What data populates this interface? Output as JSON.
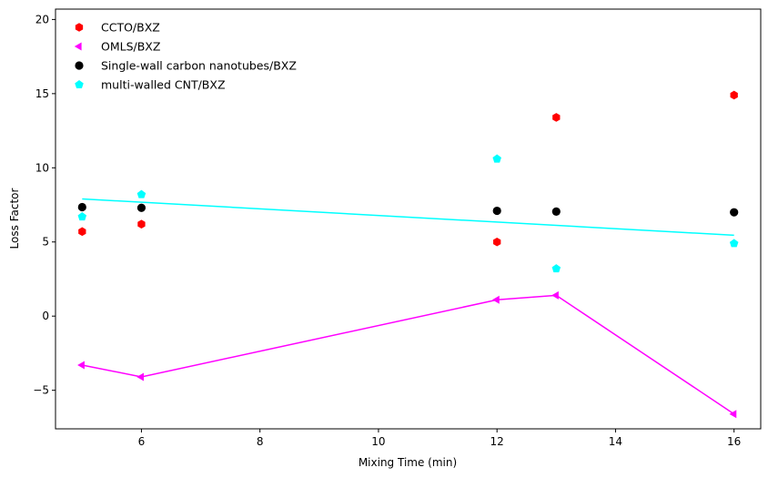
{
  "chart_data": {
    "type": "scatter",
    "xlabel": "Mixing Time (min)",
    "ylabel": "Loss Factor",
    "xlim": [
      4.55,
      16.45
    ],
    "ylim": [
      -7.6,
      20.7
    ],
    "xticks": [
      6,
      8,
      10,
      12,
      14,
      16
    ],
    "yticks": [
      -5,
      0,
      5,
      10,
      15,
      20
    ],
    "ytick_labels": [
      "−5",
      "0",
      "5",
      "10",
      "15",
      "20"
    ],
    "grid": false,
    "legend_position": "top-left",
    "series": [
      {
        "name": "CCTO/BXZ",
        "color": "#ff0000",
        "marker": "hexagon",
        "line": false,
        "points": [
          [
            5,
            5.7
          ],
          [
            6,
            6.2
          ],
          [
            12,
            5.0
          ],
          [
            13,
            13.4
          ],
          [
            16,
            14.9
          ]
        ]
      },
      {
        "name": "OMLS/BXZ",
        "color": "#ff00ff",
        "marker": "triangle-left",
        "line": true,
        "points": [
          [
            5,
            -3.3
          ],
          [
            6,
            -4.1
          ],
          [
            12,
            1.1
          ],
          [
            13,
            1.4
          ],
          [
            16,
            -6.6
          ]
        ]
      },
      {
        "name": "Single-wall carbon nanotubes/BXZ",
        "color": "#000000",
        "marker": "circle",
        "line": false,
        "points": [
          [
            5,
            7.35
          ],
          [
            6,
            7.3
          ],
          [
            12,
            7.1
          ],
          [
            13,
            7.05
          ],
          [
            16,
            7.0
          ]
        ]
      },
      {
        "name": "multi-walled CNT/BXZ",
        "color": "#00ffff",
        "marker": "pentagon",
        "line": false,
        "points": [
          [
            5,
            6.7
          ],
          [
            6,
            8.2
          ],
          [
            12,
            10.6
          ],
          [
            13,
            3.2
          ],
          [
            16,
            4.9
          ]
        ]
      }
    ],
    "trend_line": {
      "color": "#00ffff",
      "points": [
        [
          5,
          7.9
        ],
        [
          16,
          5.45
        ]
      ]
    }
  }
}
